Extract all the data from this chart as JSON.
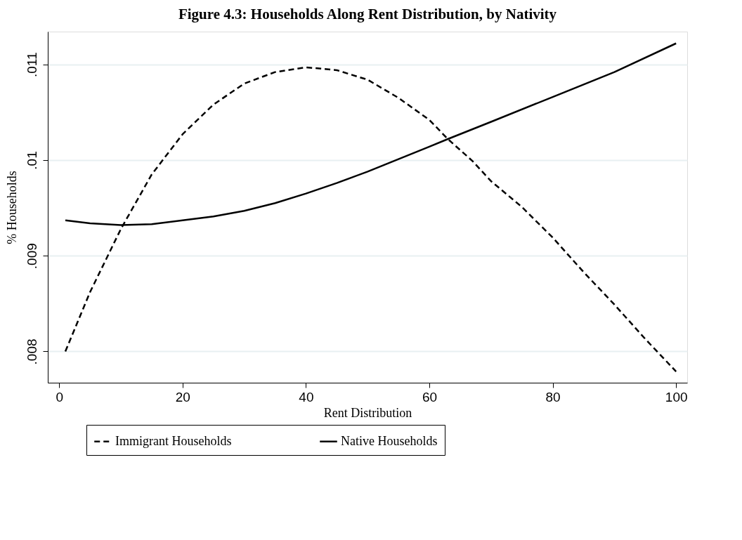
{
  "chart_data": {
    "type": "line",
    "title": "Figure 4.3: Households Along Rent Distribution, by Nativity",
    "xlabel": "Rent Distribution",
    "ylabel": "% Households",
    "series": [
      {
        "name": "Immigrant Households",
        "color": "#000000",
        "line_style": "dashed",
        "x": [
          1,
          5,
          10,
          15,
          20,
          25,
          30,
          35,
          40,
          45,
          50,
          55,
          60,
          63,
          67,
          70,
          75,
          80,
          85,
          90,
          95,
          100
        ],
        "values": [
          0.008,
          0.00862,
          0.00928,
          0.00985,
          0.01027,
          0.01058,
          0.0108,
          0.01092,
          0.01097,
          0.01094,
          0.01084,
          0.01065,
          0.01042,
          0.01022,
          0.00999,
          0.00978,
          0.00951,
          0.00919,
          0.00883,
          0.00849,
          0.00813,
          0.00779
        ]
      },
      {
        "name": "Native Households",
        "color": "#000000",
        "line_style": "solid",
        "x": [
          1,
          5,
          10,
          15,
          20,
          25,
          30,
          35,
          40,
          45,
          50,
          55,
          60,
          63,
          70,
          80,
          90,
          100
        ],
        "values": [
          0.00937,
          0.00934,
          0.00932,
          0.00933,
          0.00937,
          0.00941,
          0.00947,
          0.00955,
          0.00965,
          0.00976,
          0.00988,
          0.01001,
          0.01014,
          0.01022,
          0.0104,
          0.01066,
          0.01092,
          0.01122
        ]
      }
    ],
    "xlim": [
      -1.85,
      101.8
    ],
    "xticks": [
      0,
      20,
      40,
      60,
      80,
      100
    ],
    "ylim": [
      0.007673,
      0.011343
    ],
    "yticks": [
      {
        "value": 0.008,
        "label": ".008"
      },
      {
        "value": 0.009,
        "label": ".009"
      },
      {
        "value": 0.01,
        "label": ".01"
      },
      {
        "value": 0.011,
        "label": ".011"
      }
    ],
    "grid": "y",
    "legend": "bottom"
  }
}
